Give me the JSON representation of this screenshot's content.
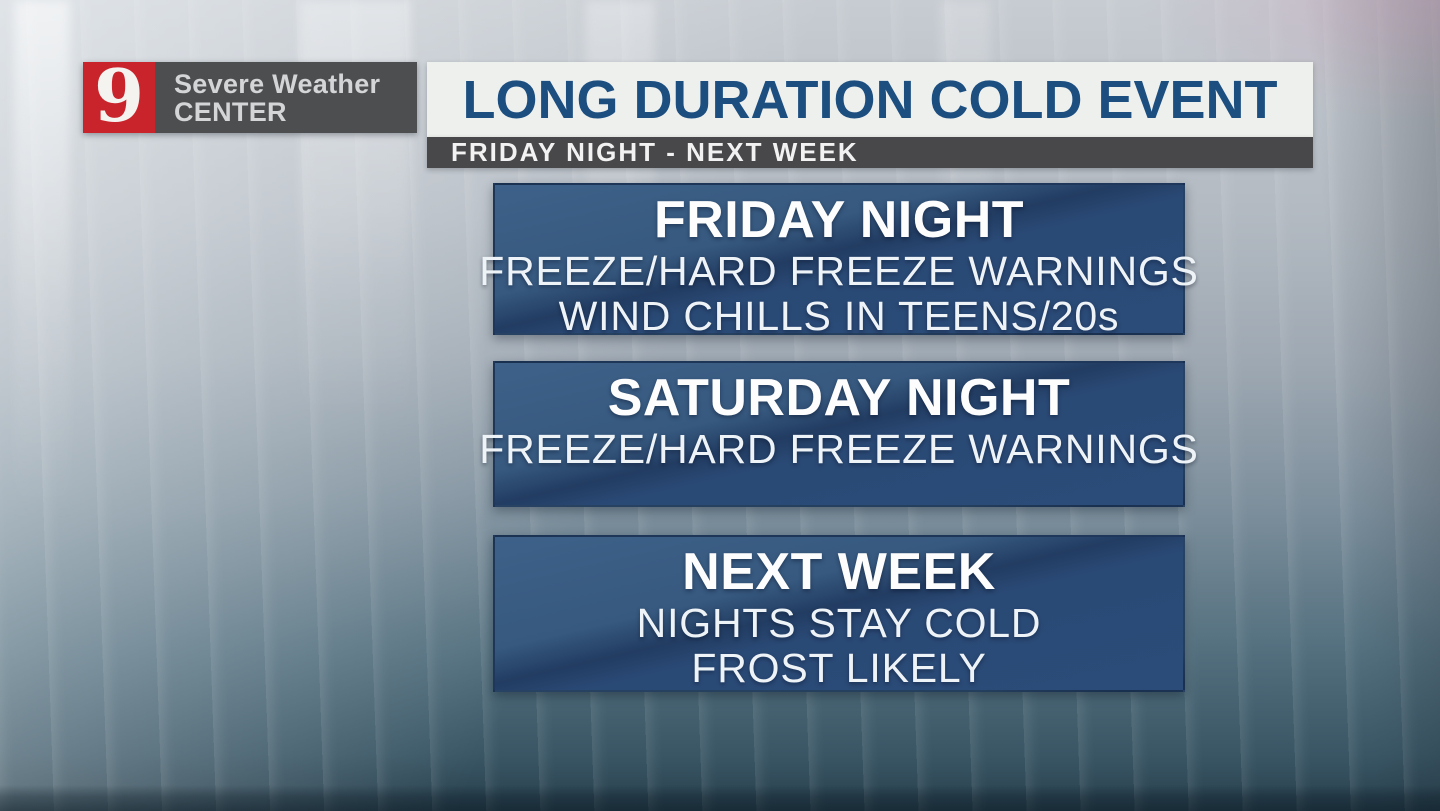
{
  "station": {
    "channel_number": "9",
    "brand_line1": "Severe Weather",
    "brand_line2": "CENTER"
  },
  "header": {
    "title": "LONG DURATION COLD EVENT",
    "subtitle": "FRIDAY NIGHT - NEXT WEEK"
  },
  "panels": [
    {
      "heading": "FRIDAY NIGHT",
      "lines": [
        "FREEZE/HARD FREEZE WARNINGS",
        "WIND CHILLS IN TEENS/20s"
      ]
    },
    {
      "heading": "SATURDAY NIGHT",
      "lines": [
        "FREEZE/HARD FREEZE WARNINGS"
      ]
    },
    {
      "heading": "NEXT WEEK",
      "lines": [
        "NIGHTS STAY COLD",
        "FROST LIKELY"
      ]
    }
  ],
  "colors": {
    "logo_red": "#c9242b",
    "logo_gray": "#4c4e50",
    "title_bar_bg": "#eef0ee",
    "title_text_navy": "#1c4e80",
    "subtitle_bar_bg": "#48484a",
    "panel_blue": "#2a4a76",
    "panel_blue_light": "#3d6189",
    "panel_blue_dark": "#223c62",
    "background_top": "#c7ccd2",
    "background_bottom": "#273f4c"
  }
}
